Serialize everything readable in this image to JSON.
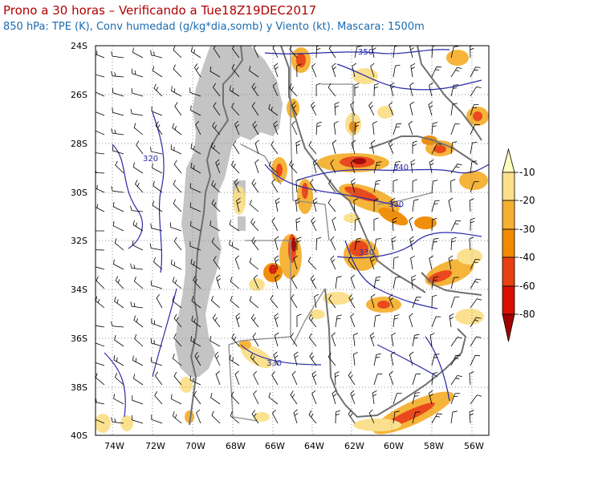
{
  "title": "Prono a 30 horas – Verificando a Tue18Z19DEC2017",
  "subtitle": "850 hPa: TPE (K), Conv humedad (g/kg*dia,somb) y Viento (kt). Mascara: 1500m",
  "lat_labels": [
    "24S",
    "26S",
    "28S",
    "30S",
    "32S",
    "34S",
    "36S",
    "38S",
    "40S"
  ],
  "lon_labels": [
    "74W",
    "72W",
    "70W",
    "68W",
    "66W",
    "64W",
    "62W",
    "60W",
    "58W",
    "56W"
  ],
  "contour_labels": [
    "350",
    "340",
    "330",
    "330",
    "320",
    "330"
  ],
  "legend": {
    "labels": [
      "-10",
      "-20",
      "-30",
      "-40",
      "-60",
      "-80"
    ],
    "colors": [
      "#ffffc0",
      "#fbe08a",
      "#f5b030",
      "#f08a00",
      "#e84010",
      "#d81000",
      "#a00000"
    ]
  },
  "colors": {
    "mask": "#c4c4c4",
    "contour": "#2a2aa8",
    "borders": "#707070",
    "barbs": "#000000"
  }
}
